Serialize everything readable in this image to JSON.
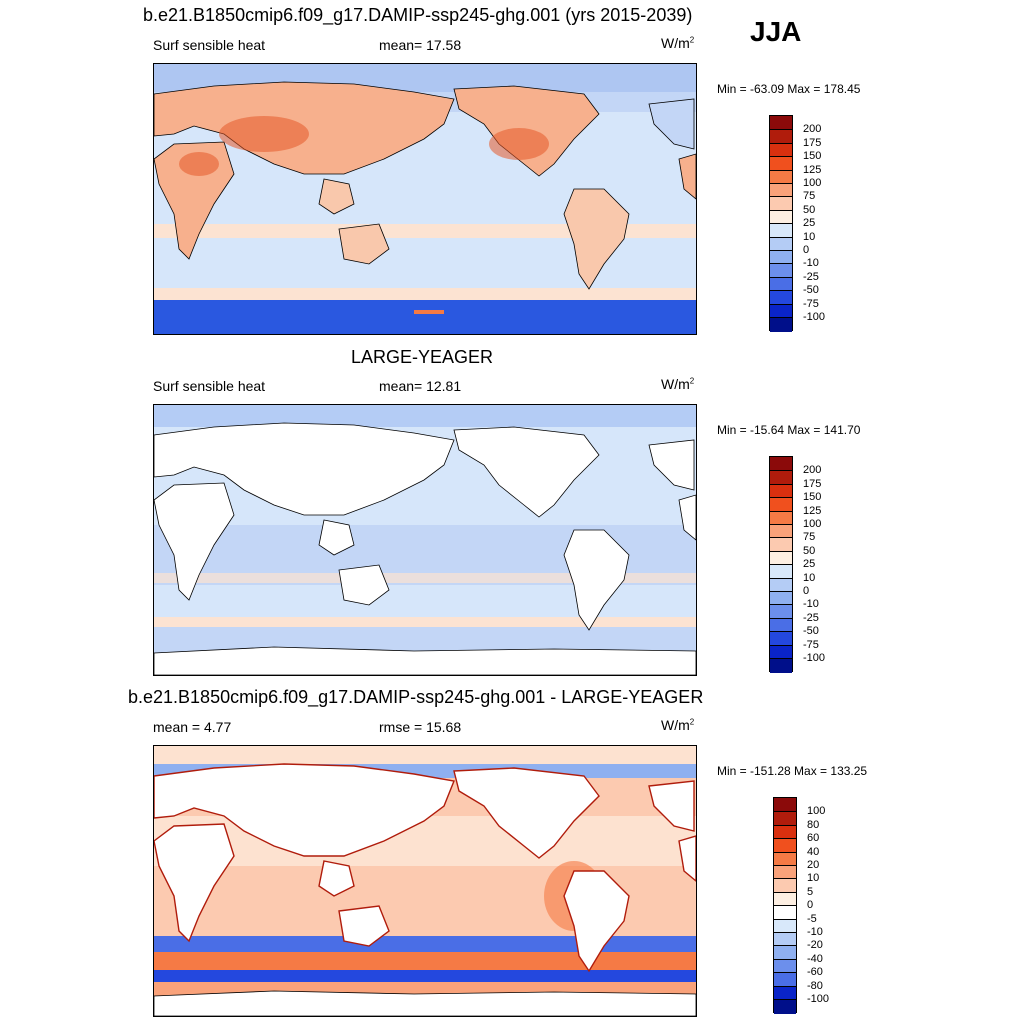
{
  "season": "JJA",
  "panels": [
    {
      "title": "b.e21.B1850cmip6.f09_g17.DAMIP-ssp245-ghg.001 (yrs 2015-2039)",
      "left_label": "Surf sensible heat",
      "center_label": "mean=  17.58",
      "units": "W/m",
      "units_sup": "2",
      "minmax": "Min = -63.09 Max = 178.45",
      "land_fill": "heat",
      "colorbar": {
        "labels": [
          "200",
          "175",
          "150",
          "125",
          "100",
          "75",
          "50",
          "25",
          "10",
          "0",
          "-10",
          "-25",
          "-50",
          "-75",
          "-100"
        ],
        "colors": [
          "#8b0a0a",
          "#b01c0c",
          "#d9300f",
          "#f0501e",
          "#f57a45",
          "#f9a27a",
          "#fccab0",
          "#fdefe2",
          "#d8e8fa",
          "#b4ccf5",
          "#8fb0f0",
          "#6c8fec",
          "#4a6ee6",
          "#2448de",
          "#0a24c8",
          "#000f8a"
        ]
      }
    },
    {
      "title": "LARGE-YEAGER",
      "left_label": "Surf sensible heat",
      "center_label": "mean=  12.81",
      "units": "W/m",
      "units_sup": "2",
      "minmax": "Min = -15.64 Max = 141.70",
      "land_fill": "white",
      "colorbar": {
        "labels": [
          "200",
          "175",
          "150",
          "125",
          "100",
          "75",
          "50",
          "25",
          "10",
          "0",
          "-10",
          "-25",
          "-50",
          "-75",
          "-100"
        ],
        "colors": [
          "#8b0a0a",
          "#b01c0c",
          "#d9300f",
          "#f0501e",
          "#f57a45",
          "#f9a27a",
          "#fccab0",
          "#fdefe2",
          "#d8e8fa",
          "#b4ccf5",
          "#8fb0f0",
          "#6c8fec",
          "#4a6ee6",
          "#2448de",
          "#0a24c8",
          "#000f8a"
        ]
      }
    },
    {
      "title": "b.e21.B1850cmip6.f09_g17.DAMIP-ssp245-ghg.001 - LARGE-YEAGER",
      "left_label": "mean =   4.77",
      "center_label": "rmse =  15.68",
      "units": "W/m",
      "units_sup": "2",
      "minmax": "Min = -151.28 Max = 133.25",
      "land_fill": "white",
      "colorbar": {
        "labels": [
          "100",
          "80",
          "60",
          "40",
          "20",
          "10",
          "5",
          "0",
          "-5",
          "-10",
          "-20",
          "-40",
          "-60",
          "-80",
          "-100"
        ],
        "colors": [
          "#8b0a0a",
          "#b01c0c",
          "#d9300f",
          "#f0501e",
          "#f57a45",
          "#f9a27a",
          "#fccab0",
          "#fdefe2",
          "#ffffff",
          "#d8e8fa",
          "#b4ccf5",
          "#8fb0f0",
          "#6c8fec",
          "#4a6ee6",
          "#0a24c8",
          "#000f8a"
        ]
      }
    }
  ]
}
